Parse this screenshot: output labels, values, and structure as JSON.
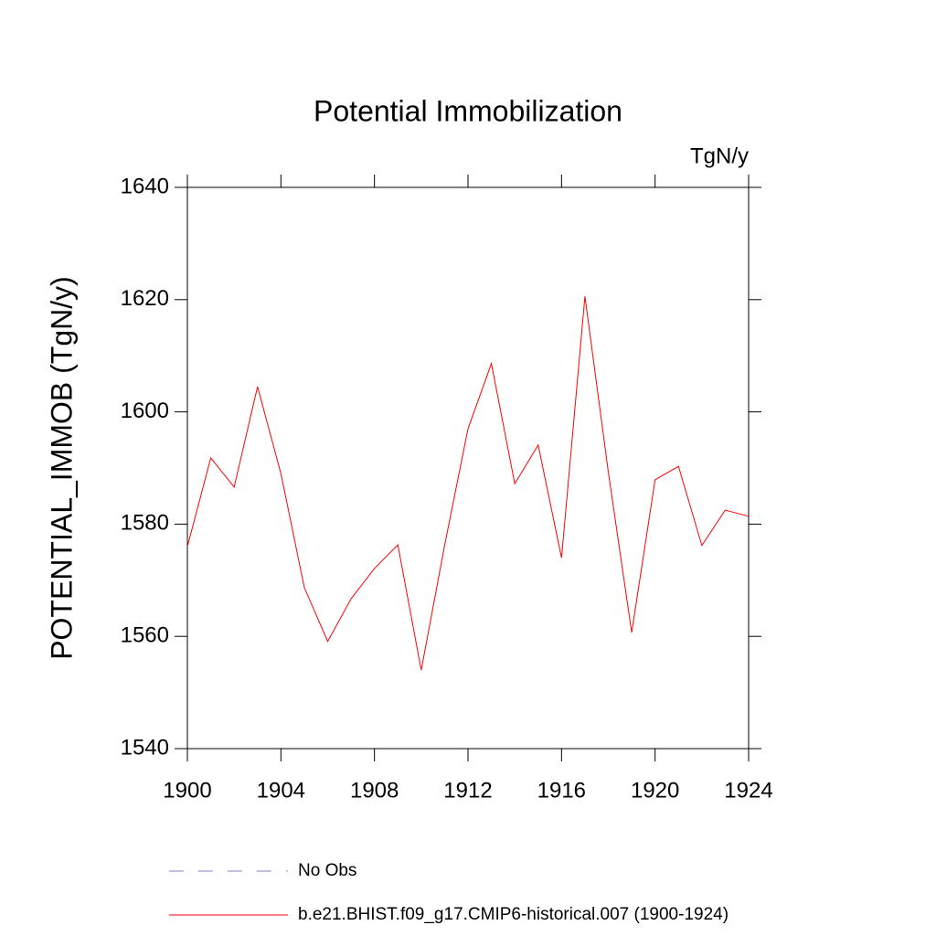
{
  "chart_data": {
    "type": "line",
    "title": "Potential Immobilization",
    "units": "TgN/y",
    "y_label": "POTENTIAL_IMMOB  (TgN/y)",
    "x": [
      1900,
      1901,
      1902,
      1903,
      1904,
      1905,
      1906,
      1907,
      1908,
      1909,
      1910,
      1911,
      1912,
      1913,
      1914,
      1915,
      1916,
      1917,
      1918,
      1919,
      1920,
      1921,
      1922,
      1923,
      1924
    ],
    "series": [
      {
        "name": "b.e21.BHIST.f09_g17.CMIP6-historical.007 (1900-1924)",
        "color": "#ff0000",
        "values": [
          1576.0,
          1591.8,
          1586.6,
          1604.5,
          1589.0,
          1568.7,
          1559.1,
          1566.7,
          1572.1,
          1576.3,
          1554.0,
          1576.2,
          1597.0,
          1608.6,
          1587.2,
          1594.1,
          1574.0,
          1620.6,
          1589.3,
          1560.7,
          1587.9,
          1590.3,
          1576.2,
          1582.5,
          1581.4
        ]
      }
    ],
    "legend_extra": {
      "name": "No Obs",
      "color": "#8080c0",
      "dash": true
    },
    "xlim": [
      1900,
      1924
    ],
    "xticks": [
      1900,
      1904,
      1908,
      1912,
      1916,
      1920,
      1924
    ],
    "ylim": [
      1540,
      1640
    ],
    "yticks": [
      1540,
      1560,
      1580,
      1600,
      1620,
      1640
    ]
  }
}
